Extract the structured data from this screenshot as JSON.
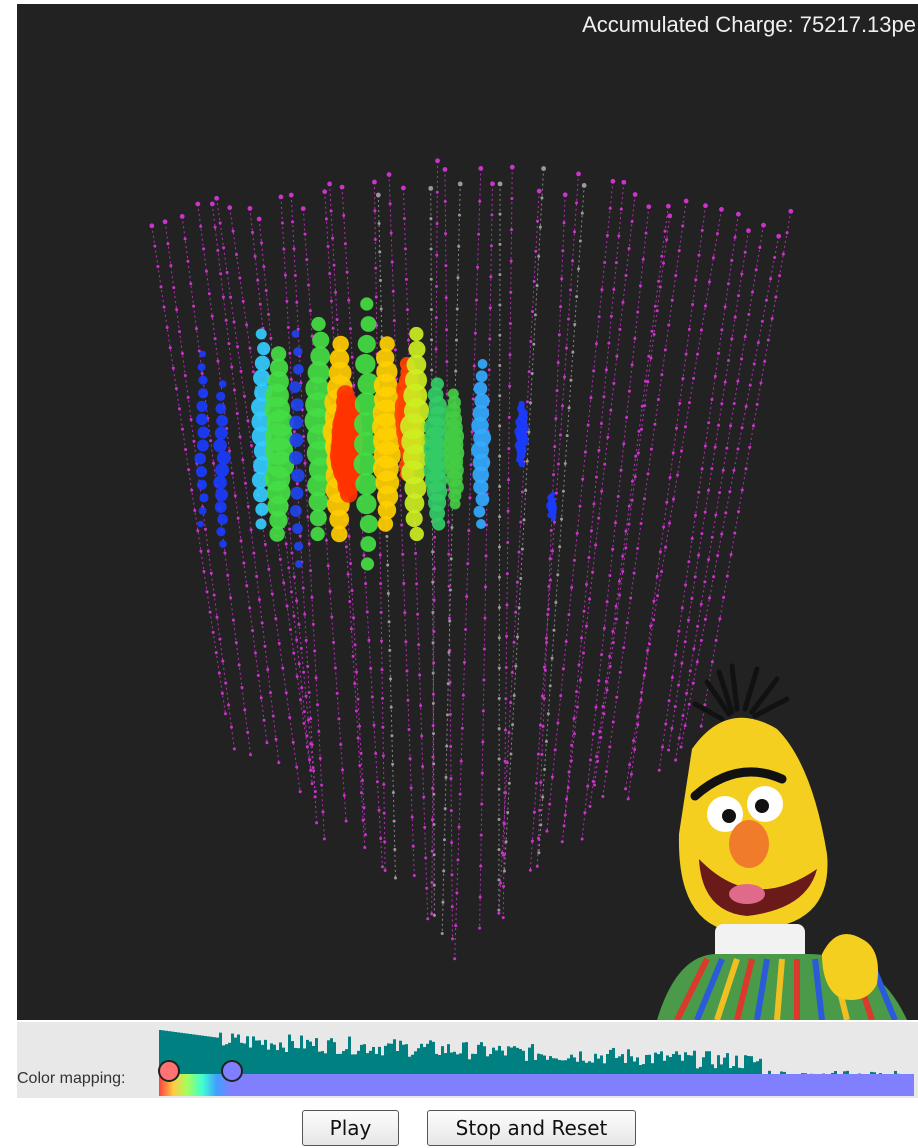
{
  "viewer": {
    "charge_readout": "Accumulated Charge: 75217.13pe",
    "background_color": "#222222",
    "string_color_active": "#cc33cc",
    "string_color_inactive": "#9a9a9a"
  },
  "mascot": {
    "name": "bert-puppet"
  },
  "color_mapping": {
    "label": "Color mapping:",
    "histogram_color": "#008080",
    "range_color": "#8080ff",
    "min_handle_color": "#ff7373",
    "max_handle_color": "#8080ff"
  },
  "controls": {
    "play_label": "Play",
    "stop_reset_label": "Stop and Reset"
  }
}
